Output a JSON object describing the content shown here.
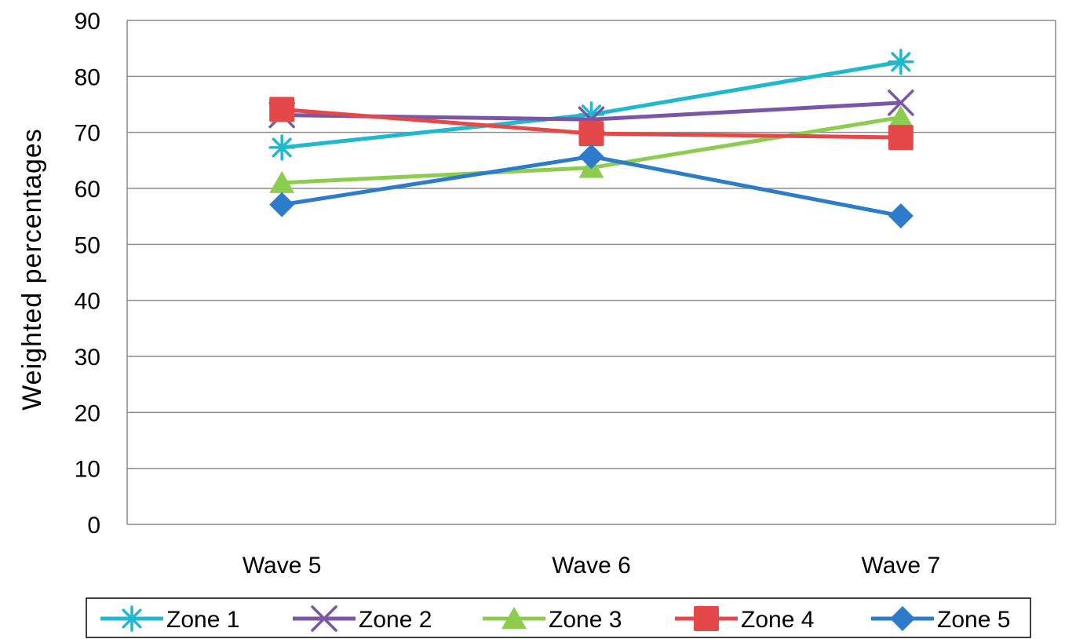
{
  "chart_data": {
    "type": "line",
    "title": "",
    "xlabel": "",
    "ylabel": "Weighted  percentages",
    "categories": [
      "Wave 5",
      "Wave 6",
      "Wave 7"
    ],
    "ylim": [
      0,
      90
    ],
    "yticks": [
      0,
      10,
      20,
      30,
      40,
      50,
      60,
      70,
      80,
      90
    ],
    "grid": true,
    "legend_position": "bottom",
    "series": [
      {
        "name": "Zone 1",
        "values": [
          67.3,
          73.2,
          82.6
        ],
        "color": "#1fb8cf",
        "marker": "asterisk"
      },
      {
        "name": "Zone 2",
        "values": [
          73.1,
          72.3,
          75.3
        ],
        "color": "#7b55a8",
        "marker": "x"
      },
      {
        "name": "Zone 3",
        "values": [
          61.0,
          63.7,
          72.7
        ],
        "color": "#8ccc4f",
        "marker": "triangle"
      },
      {
        "name": "Zone 4",
        "values": [
          74.1,
          69.8,
          69.1
        ],
        "color": "#e44848",
        "marker": "square"
      },
      {
        "name": "Zone 5",
        "values": [
          57.1,
          65.7,
          55.1
        ],
        "color": "#2c7ccb",
        "marker": "diamond"
      }
    ]
  }
}
